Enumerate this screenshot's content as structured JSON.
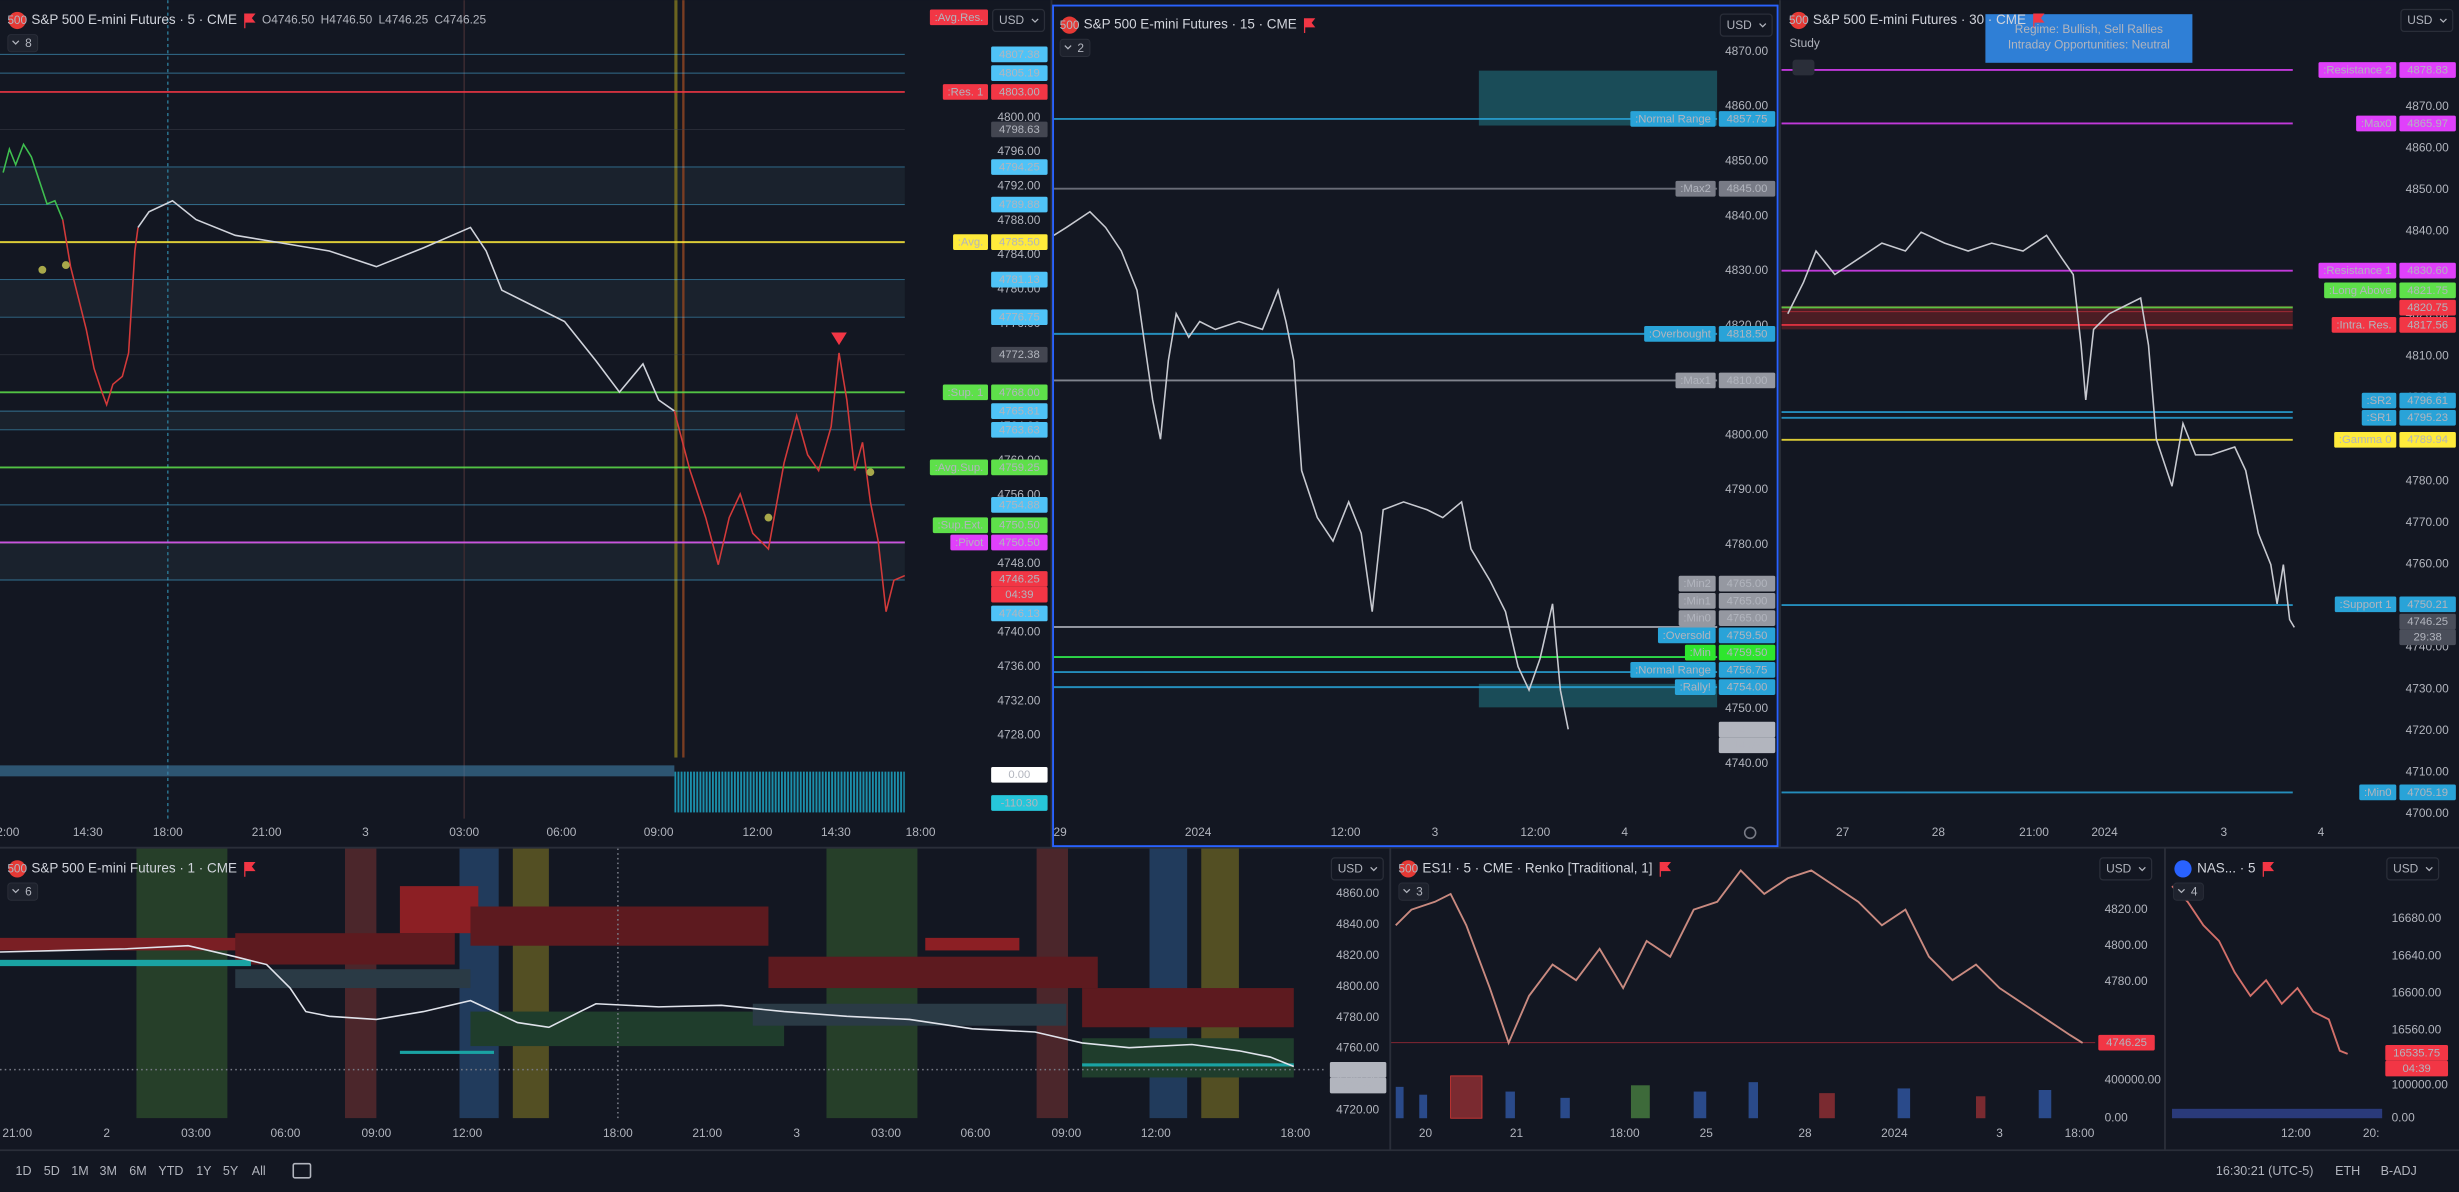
{
  "panels": [
    {
      "title": "S&P 500 E-mini Futures · 5 · CME",
      "logo": "500",
      "logo_color": "#e53935",
      "ohlc": [
        "O4746.50",
        "H4746.50",
        "L4746.25",
        "C4746.25"
      ],
      "badge": "8",
      "currency": "USD",
      "yticks": [
        "4800.00",
        "4796.00",
        "4792.00",
        "4788.00",
        "4784.00",
        "4780.00",
        "4776.00",
        "4772.00",
        "4768.00",
        "4764.00",
        "4760.00",
        "4756.00",
        "4752.00",
        "4748.00",
        "4744.00",
        "4740.00",
        "4736.00",
        "4732.00",
        "4728.00"
      ],
      "xticks": [
        "2:00",
        "14:30",
        "18:00",
        "21:00",
        "3",
        "03:00",
        "06:00",
        "09:00",
        "12:00",
        "14:30",
        "18:00"
      ],
      "tags": [
        {
          "label": ":Avg.Res.",
          "color": "#f23645"
        },
        {
          "value": "4807.38",
          "color": "#4fc3f7"
        },
        {
          "value": "4805.19",
          "color": "#4fc3f7"
        },
        {
          "label": ":Res. 1",
          "value": "4803.00",
          "color": "#f23645"
        },
        {
          "value": "4798.63",
          "color": "#434651"
        },
        {
          "value": "4794.25",
          "color": "#4fc3f7"
        },
        {
          "value": "4789.88",
          "color": "#4fc3f7"
        },
        {
          "label": ":Avg.",
          "value": "4785.50",
          "color": "#ffeb3b"
        },
        {
          "value": "4781.13",
          "color": "#4fc3f7"
        },
        {
          "value": "4776.75",
          "color": "#4fc3f7"
        },
        {
          "value": "4772.38",
          "color": "#434651"
        },
        {
          "label": ":Sup. 1",
          "value": "4768.00",
          "color": "#5ee04a"
        },
        {
          "value": "4765.81",
          "color": "#4fc3f7"
        },
        {
          "value": "4763.63",
          "color": "#4fc3f7"
        },
        {
          "label": ":Avg.Sup.",
          "value": "4759.25",
          "color": "#5ee04a"
        },
        {
          "value": "4754.88",
          "color": "#4fc3f7"
        },
        {
          "label": ":Sup.Ext.",
          "value": "4750.50",
          "color": "#5ee04a"
        },
        {
          "label": ":Pivot",
          "value": "4750.50",
          "color": "#e040fb"
        },
        {
          "value": "4746.25",
          "countdown": "04:39",
          "color": "#f23645"
        },
        {
          "value": "4746.13",
          "color": "#4fc3f7"
        }
      ],
      "indicator_tags": [
        {
          "value": "0.00",
          "color": "#ffffff"
        },
        {
          "value": "-110.30",
          "color": "#26c6da"
        }
      ]
    },
    {
      "title": "S&P 500 E-mini Futures · 15 · CME",
      "logo": "500",
      "logo_color": "#e53935",
      "badge": "2",
      "currency": "USD",
      "yticks": [
        "4870.00",
        "4860.00",
        "4850.00",
        "4840.00",
        "4830.00",
        "4820.00",
        "4810.00",
        "4800.00",
        "4790.00",
        "4780.00",
        "4770.00",
        "4760.00",
        "4750.00",
        "4740.00"
      ],
      "xticks": [
        "29",
        "2024",
        "12:00",
        "3",
        "12:00",
        "4"
      ],
      "tags": [
        {
          "label": ":Normal Range",
          "value": "4857.75",
          "color": "#29a3d8"
        },
        {
          "label": ":Max2",
          "value": "4845.00",
          "color": "#787b86"
        },
        {
          "label": ":Overbought",
          "value": "4818.50",
          "color": "#29a3d8"
        },
        {
          "label": ":Max1",
          "value": "4810.00",
          "color": "#9598a1"
        },
        {
          "label": ":Min2",
          "value": "4765.00",
          "color": "#9598a1"
        },
        {
          "label": ":Min1",
          "value": "4765.00",
          "color": "#9598a1"
        },
        {
          "label": ":Min0",
          "value": "4765.00",
          "color": "#9598a1"
        },
        {
          "label": ":Oversold",
          "value": "4759.50",
          "color": "#29a3d8"
        },
        {
          "label": ":Min",
          "value": "4759.50",
          "color": "#2ee62e"
        },
        {
          "label": ":Normal Range",
          "value": "4756.75",
          "color": "#29a3d8"
        },
        {
          "label": ":Rally!",
          "value": "4754.00",
          "color": "#29a3d8"
        },
        {
          "value": "4746.25",
          "countdown": "14:39",
          "color": "#b2b5be"
        }
      ]
    },
    {
      "title": "S&P 500 E-mini Futures · 30 · CME",
      "logo": "500",
      "logo_color": "#e53935",
      "study": "Study",
      "regime": [
        "Regime: Bullish, Sell Rallies",
        "Intraday Opportunities: Neutral"
      ],
      "currency": "USD",
      "yticks": [
        "4870.00",
        "4860.00",
        "4850.00",
        "4840.00",
        "4830.00",
        "4820.00",
        "4810.00",
        "4800.00",
        "4790.00",
        "4780.00",
        "4770.00",
        "4760.00",
        "4750.00",
        "4740.00",
        "4730.00",
        "4720.00",
        "4710.00",
        "4700.00"
      ],
      "xticks": [
        "27",
        "28",
        "21:00",
        "2024",
        "3",
        "4"
      ],
      "tags": [
        {
          "label": ":Resistance 2",
          "value": "4878.83",
          "color": "#e040fb"
        },
        {
          "label": ":Max0",
          "value": "4865.97",
          "color": "#e040fb"
        },
        {
          "label": ":Resistance 1",
          "value": "4830.60",
          "color": "#e040fb"
        },
        {
          "label": ":Long Above",
          "value": "4821.75",
          "color": "#5ee04a"
        },
        {
          "value": "4820.75",
          "color": "#f23645"
        },
        {
          "label": ":Intra. Res.",
          "value": "4817.56",
          "color": "#f23645"
        },
        {
          "label": ":SR2",
          "value": "4796.61",
          "color": "#29a3d8"
        },
        {
          "label": ":SR1",
          "value": "4795.23",
          "color": "#29a3d8"
        },
        {
          "label": ":Gamma 0",
          "value": "4789.94",
          "color": "#ffeb3b"
        },
        {
          "label": ":Support 1",
          "value": "4750.21",
          "color": "#29a3d8"
        },
        {
          "value": "4746.25",
          "countdown": "29:38",
          "color": "#4a4e5a"
        },
        {
          "label": ":Min0",
          "value": "4705.19",
          "color": "#29a3d8"
        }
      ]
    },
    {
      "title": "S&P 500 E-mini Futures · 1 · CME",
      "logo": "500",
      "logo_color": "#e53935",
      "badge": "6",
      "currency": "USD",
      "yticks": [
        "4860.00",
        "4840.00",
        "4820.00",
        "4800.00",
        "4780.00",
        "4760.00",
        "4740.00",
        "4720.00"
      ],
      "xticks": [
        "21:00",
        "2",
        "03:00",
        "06:00",
        "09:00",
        "12:00",
        "18:00",
        "21:00",
        "3",
        "03:00",
        "06:00",
        "09:00",
        "12:00",
        "18:00"
      ],
      "tags": [
        {
          "value": "4746.25",
          "countdown": "00:39",
          "color": "#b2b5be"
        }
      ]
    },
    {
      "title": "ES1! · 5 · CME · Renko [Traditional, 1]",
      "logo": "500",
      "logo_color": "#e53935",
      "badge": "3",
      "currency": "USD",
      "yticks": [
        "4820.00",
        "4800.00",
        "4780.00"
      ],
      "volume_yticks": [
        "400000.00",
        "0.00"
      ],
      "xticks": [
        "20",
        "21",
        "18:00",
        "25",
        "28",
        "2024",
        "3",
        "18:00"
      ],
      "tags": [
        {
          "value": "4746.25",
          "color": "#f23645"
        }
      ]
    },
    {
      "title": "NAS... · 5",
      "logo_color": "#2962ff",
      "badge": "4",
      "currency": "USD",
      "yticks": [
        "16680.00",
        "16640.00",
        "16600.00",
        "16560.00"
      ],
      "volume_yticks": [
        "100000.00",
        "0.00"
      ],
      "xticks": [
        "12:00",
        "20:"
      ],
      "tags": [
        {
          "value": "16535.75",
          "countdown": "04:39",
          "color": "#f23645"
        }
      ]
    }
  ],
  "toolbar": {
    "ranges": [
      "1D",
      "5D",
      "1M",
      "3M",
      "6M",
      "YTD",
      "1Y",
      "5Y",
      "All"
    ],
    "clock": "16:30:21 (UTC-5)",
    "session": "ETH",
    "adjust": "B-ADJ"
  }
}
